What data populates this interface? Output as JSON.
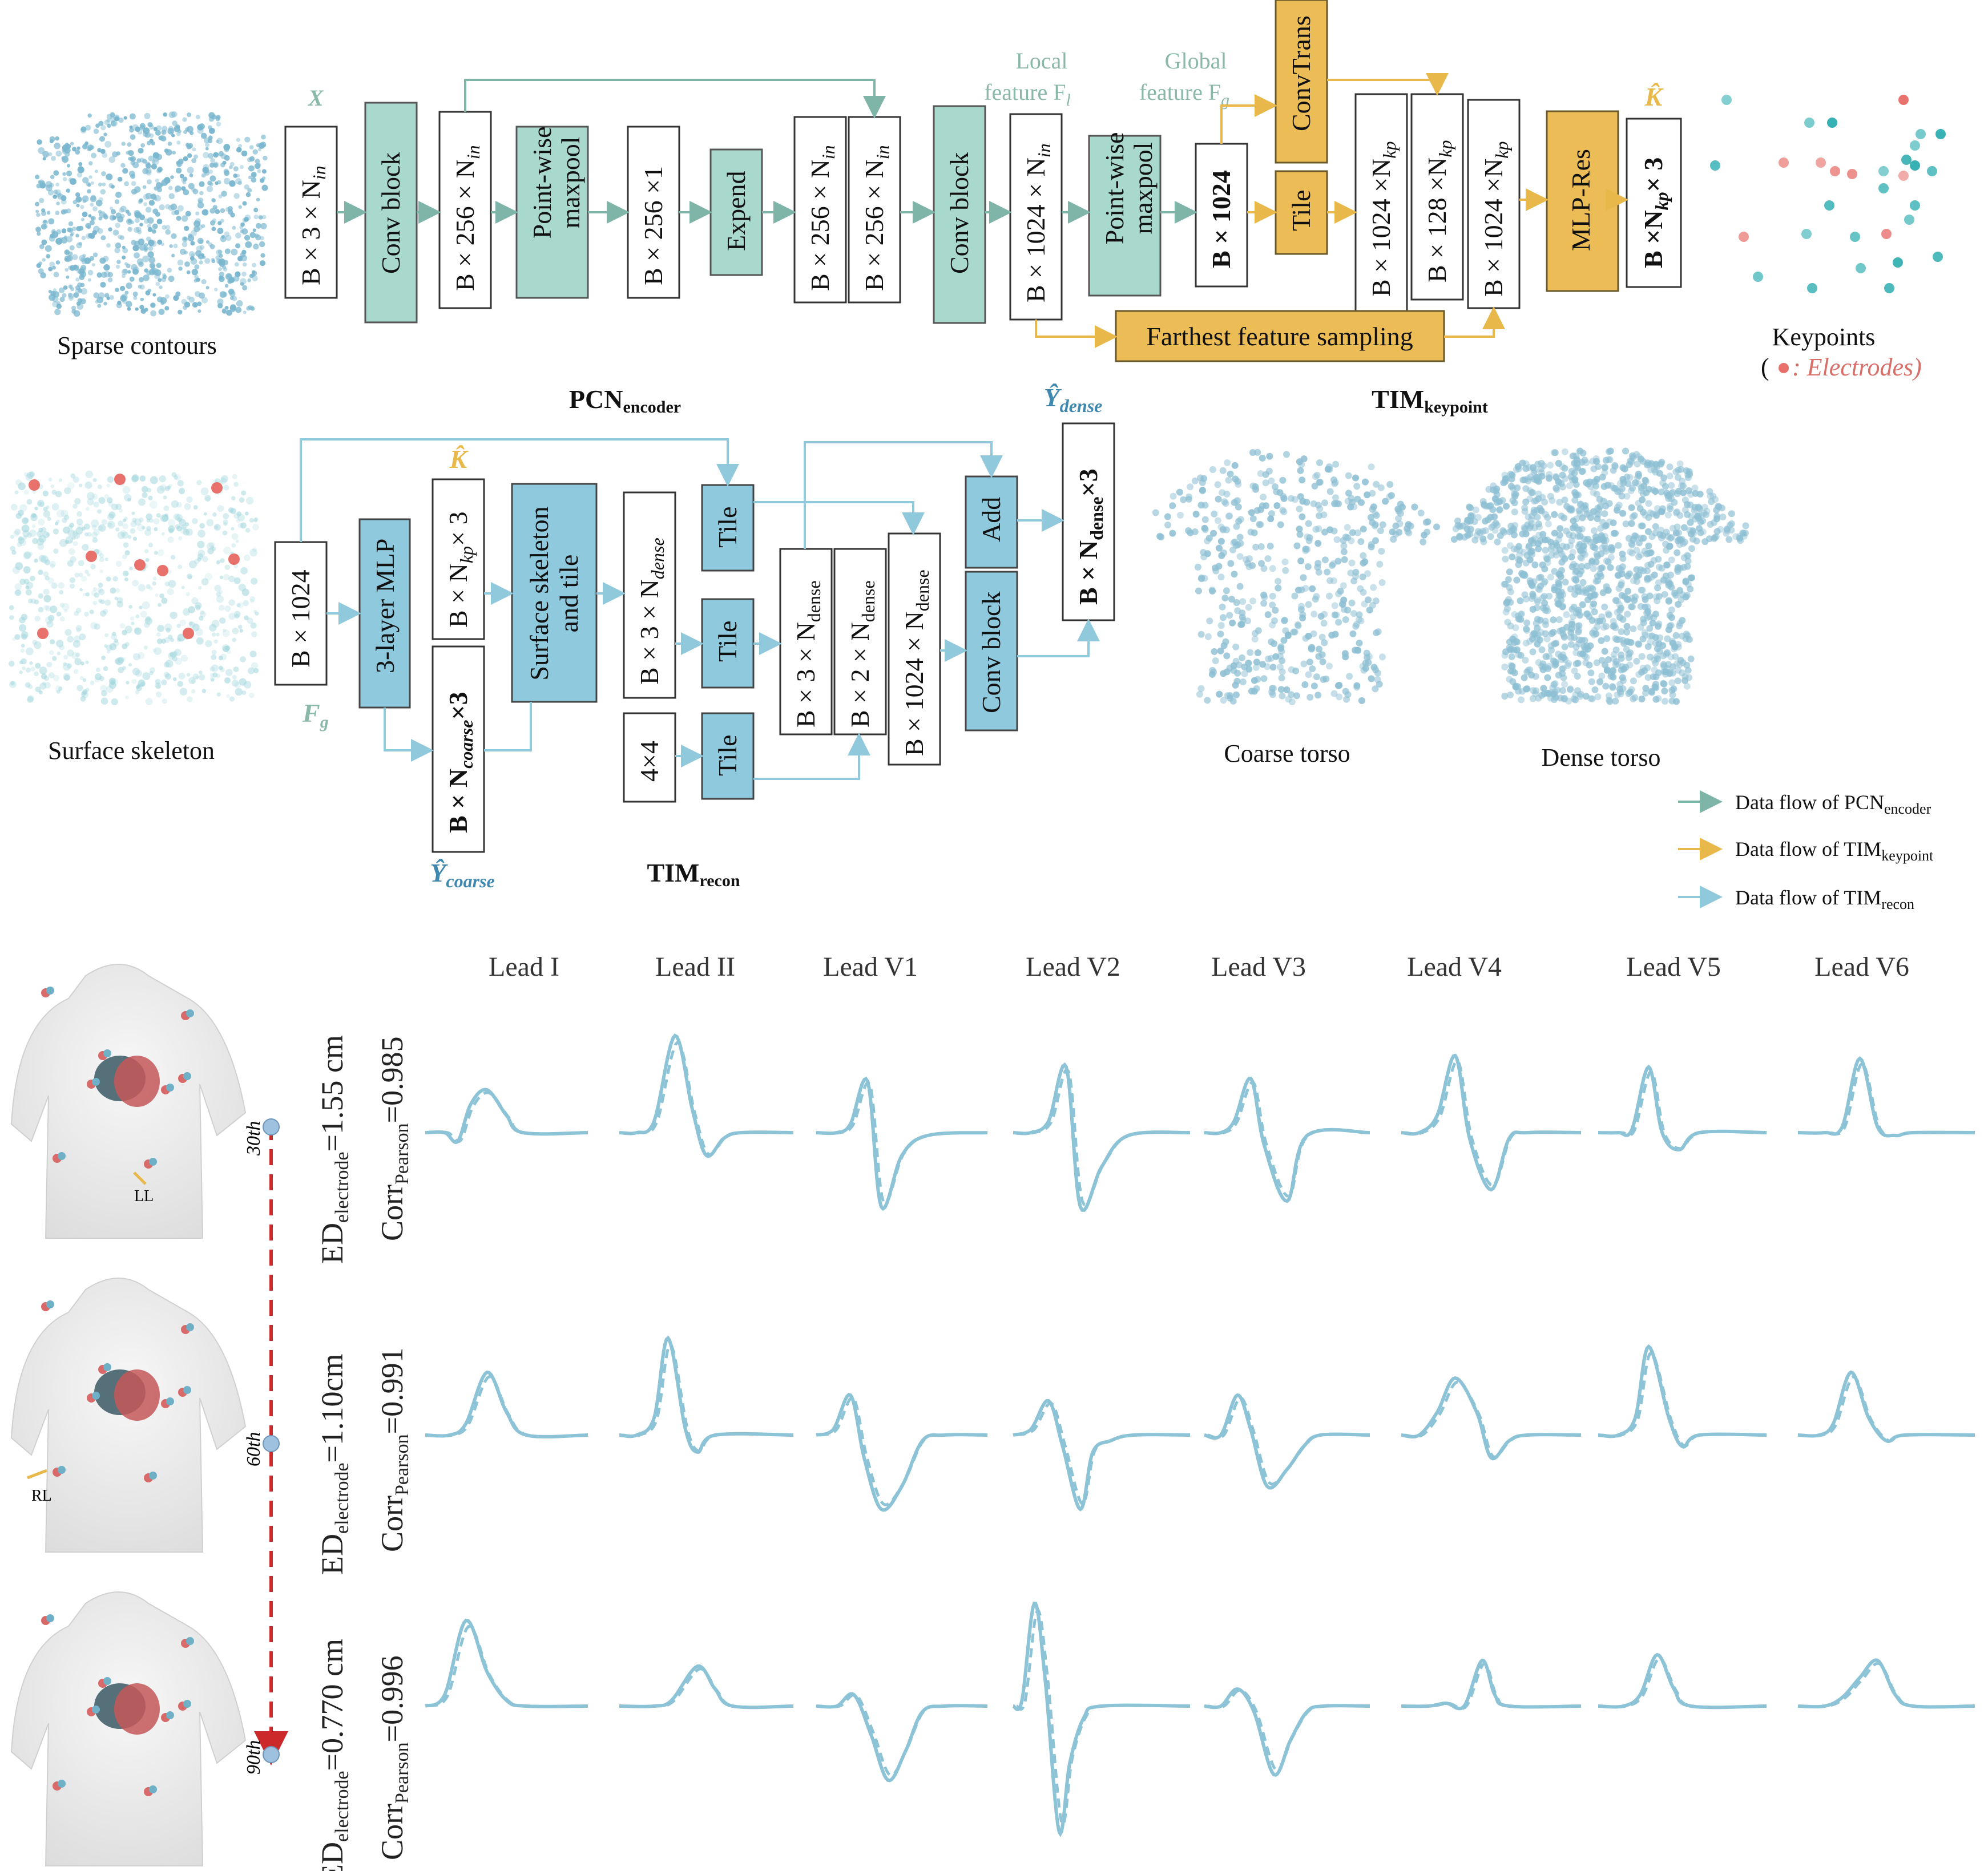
{
  "pcn": {
    "input_label": "X",
    "boxes": {
      "b3nin": "B × 3 × N",
      "conv1": "Conv block",
      "b256nin": "B × 256 × N",
      "pmax1": "Point-wise maxpool",
      "b256_1": "B × 256 ×1",
      "expend": "Expend",
      "b256a": "B × 256 × N",
      "b256b": "B × 256 × N",
      "conv2": "Conv block",
      "b1024nin": "B × 1024 × N",
      "pmax2": "Point-wise maxpool",
      "b1024": "B × 1024"
    },
    "nsub": "in",
    "local_feature": [
      "Local",
      "feature F"
    ],
    "local_sub": "l",
    "global_feature": [
      "Global",
      "feature F"
    ],
    "global_sub": "g",
    "title": "PCN",
    "title_sub": "encoder"
  },
  "keypoint": {
    "convtrans": "ConvTrans",
    "tile": "Tile",
    "b1024nkp": "B × 1024 ×N",
    "b128nkp": "B × 128 ×N",
    "b1024nkp2": "B × 1024 ×N",
    "kp_sub": "kp",
    "mlp_res": "MLP-Res",
    "out": "B ×N",
    "out_tail": "× 3",
    "khat": "K̂",
    "ffs": "Farthest feature sampling",
    "title": "TIM",
    "title_sub": "keypoint"
  },
  "recon": {
    "b1024": "B × 1024",
    "fg": "F",
    "fg_sub": "g",
    "mlp3": "3-layer  MLP",
    "khat": "K̂",
    "bnkp3": "B × N",
    "bnkp3_tail": "× 3",
    "bncoarse": "B × N",
    "bncoarse_sub": "coarse",
    "bncoarse_tail": "×3",
    "skel": [
      "Surface skeleton",
      "and tile"
    ],
    "b3ndense": "B × 3 × N",
    "dense_sub": "dense",
    "tile1": "Tile",
    "tile2": "Tile",
    "tile3": "Tile",
    "fourby4": "4×4",
    "b3N": "B × 3 × N",
    "b2N": "B × 2 × N",
    "b1024N": "B × 1024 × N",
    "add": "Add",
    "conv": "Conv block",
    "out": "B × N",
    "out_tail": "×3",
    "ydense": "Ŷ",
    "ydense_sub": "dense",
    "ycoarse": "Ŷ",
    "ycoarse_sub": "coarse",
    "title": "TIM",
    "title_sub": "recon"
  },
  "captions": {
    "sparse": "Sparse contours",
    "skeleton": "Surface skeleton",
    "keypoints": "Keypoints",
    "electrodes_prefix": "(",
    "electrodes": ": Electrodes)",
    "coarse": "Coarse torso",
    "dense": "Dense torso"
  },
  "legend": [
    {
      "label": "Data flow of PCN",
      "sub": "encoder",
      "color": "#7fb5a8"
    },
    {
      "label": "Data flow of TIM",
      "sub": "keypoint",
      "color": "#e8b84a"
    },
    {
      "label": "Data flow of  TIM",
      "sub": "recon",
      "color": "#90c8dc"
    }
  ],
  "colors": {
    "teal": "#a9d8cc",
    "gold": "#ecbd56",
    "blue": "#8fc9de",
    "electrode": "#e8716c"
  },
  "leads": [
    "Lead I",
    "Lead II",
    "Lead V1",
    "Lead V2",
    "Lead V3",
    "Lead V4",
    "Lead V5",
    "Lead V6"
  ],
  "rows": [
    {
      "iter": "30th",
      "ed": "ED",
      "ed_sub": "electrode",
      "ed_val": "=1.55 cm",
      "corr": "Corr",
      "corr_sub": "Pearson",
      "corr_val": "=0.985",
      "marker": "LL"
    },
    {
      "iter": "60th",
      "ed": "ED",
      "ed_sub": "electrode",
      "ed_val": "=1.10cm",
      "corr": "Corr",
      "corr_sub": "Pearson",
      "corr_val": "=0.991",
      "marker": "RL"
    },
    {
      "iter": "90th",
      "ed": "ED",
      "ed_sub": "electrode",
      "ed_val": "=0.770 cm",
      "corr": "Corr",
      "corr_sub": "Pearson",
      "corr_val": "=0.996",
      "marker": ""
    }
  ]
}
